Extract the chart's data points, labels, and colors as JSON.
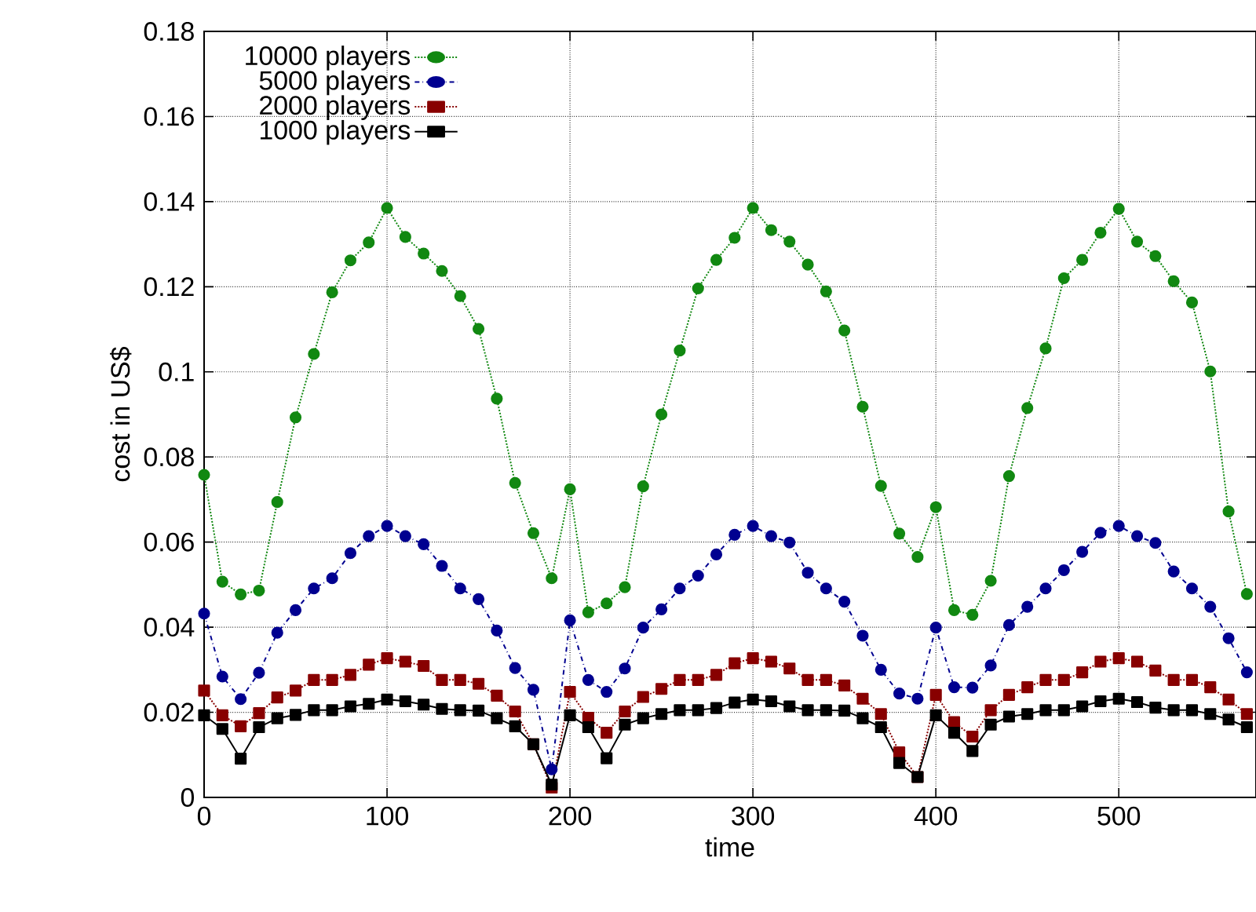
{
  "chart_data": {
    "type": "line",
    "xlabel": "time",
    "ylabel": "cost in US$",
    "x": [
      0,
      10,
      20,
      30,
      40,
      50,
      60,
      70,
      80,
      90,
      100,
      110,
      120,
      130,
      140,
      150,
      160,
      170,
      180,
      190,
      200,
      210,
      220,
      230,
      240,
      250,
      260,
      270,
      280,
      290,
      300,
      310,
      320,
      330,
      340,
      350,
      360,
      370,
      380,
      390,
      400,
      410,
      420,
      430,
      440,
      450,
      460,
      470,
      480,
      490,
      500,
      510,
      520,
      530,
      540,
      550,
      560,
      570
    ],
    "series": [
      {
        "name": "10000 players",
        "color": "#118811",
        "line_style": "dotted",
        "marker": "circle",
        "values": [
          0.0758,
          0.0507,
          0.0477,
          0.0486,
          0.0694,
          0.0893,
          0.1042,
          0.1187,
          0.1262,
          0.1304,
          0.1385,
          0.1317,
          0.1278,
          0.1237,
          0.1178,
          0.1101,
          0.0937,
          0.0739,
          0.0621,
          0.0515,
          0.0724,
          0.0435,
          0.0456,
          0.0494,
          0.0731,
          0.09,
          0.105,
          0.1196,
          0.1263,
          0.1315,
          0.1385,
          0.1333,
          0.1306,
          0.1252,
          0.1189,
          0.1097,
          0.0918,
          0.0732,
          0.062,
          0.0565,
          0.0682,
          0.044,
          0.0429,
          0.0509,
          0.0755,
          0.0915,
          0.1055,
          0.122,
          0.1263,
          0.1327,
          0.1383,
          0.1306,
          0.1272,
          0.1213,
          0.1163,
          0.1001,
          0.0672,
          0.0478
        ]
      },
      {
        "name": "5000 players",
        "color": "#000090",
        "line_style": "dashdot",
        "marker": "circle",
        "values": [
          0.0432,
          0.0284,
          0.0231,
          0.0293,
          0.0387,
          0.044,
          0.0491,
          0.0515,
          0.0574,
          0.0614,
          0.0638,
          0.0614,
          0.0595,
          0.0544,
          0.0491,
          0.0466,
          0.0392,
          0.0304,
          0.0253,
          0.0066,
          0.0416,
          0.0276,
          0.0248,
          0.0303,
          0.0399,
          0.0442,
          0.0491,
          0.0521,
          0.0571,
          0.0617,
          0.0638,
          0.0614,
          0.0599,
          0.0528,
          0.0491,
          0.046,
          0.038,
          0.03,
          0.0244,
          0.0232,
          0.0399,
          0.0259,
          0.0258,
          0.031,
          0.0405,
          0.0448,
          0.0491,
          0.0534,
          0.0577,
          0.0622,
          0.0638,
          0.0614,
          0.0598,
          0.0531,
          0.0491,
          0.0448,
          0.0374,
          0.0294
        ]
      },
      {
        "name": "2000 players",
        "color": "#880000",
        "line_style": "dotted",
        "marker": "square",
        "values": [
          0.0251,
          0.0193,
          0.0167,
          0.0198,
          0.0235,
          0.0251,
          0.0276,
          0.0276,
          0.0288,
          0.0312,
          0.0327,
          0.0319,
          0.0309,
          0.0276,
          0.0276,
          0.0267,
          0.0239,
          0.0202,
          0.0125,
          0.0023,
          0.0248,
          0.0187,
          0.0152,
          0.0202,
          0.0236,
          0.0255,
          0.0276,
          0.0276,
          0.0288,
          0.0315,
          0.0327,
          0.0319,
          0.0303,
          0.0276,
          0.0276,
          0.0263,
          0.0232,
          0.0196,
          0.0106,
          0.0048,
          0.0241,
          0.0177,
          0.0143,
          0.0205,
          0.0241,
          0.0259,
          0.0276,
          0.0276,
          0.0294,
          0.0319,
          0.0327,
          0.0319,
          0.0298,
          0.0276,
          0.0276,
          0.0259,
          0.023,
          0.0196
        ]
      },
      {
        "name": "1000 players",
        "color": "#000000",
        "line_style": "solid",
        "marker": "square",
        "values": [
          0.0193,
          0.0161,
          0.0091,
          0.0165,
          0.0186,
          0.0194,
          0.0205,
          0.0205,
          0.0214,
          0.022,
          0.023,
          0.0226,
          0.0218,
          0.0208,
          0.0205,
          0.0204,
          0.0186,
          0.0167,
          0.0125,
          0.003,
          0.0193,
          0.0165,
          0.0092,
          0.0171,
          0.0186,
          0.0196,
          0.0205,
          0.0205,
          0.021,
          0.0223,
          0.023,
          0.0226,
          0.0214,
          0.0205,
          0.0205,
          0.0204,
          0.0186,
          0.0165,
          0.0081,
          0.0048,
          0.0193,
          0.0152,
          0.0109,
          0.0171,
          0.019,
          0.0196,
          0.0205,
          0.0205,
          0.0214,
          0.0226,
          0.0232,
          0.0224,
          0.0211,
          0.0205,
          0.0205,
          0.0196,
          0.0183,
          0.0165
        ]
      }
    ],
    "xlim": [
      0,
      575
    ],
    "ylim": [
      0,
      0.18
    ],
    "xticks": [
      0,
      100,
      200,
      300,
      400,
      500
    ],
    "yticks": [
      0,
      0.02,
      0.04,
      0.06,
      0.08,
      0.1,
      0.12,
      0.14,
      0.16,
      0.18
    ],
    "grid": true,
    "legend": "top left"
  }
}
